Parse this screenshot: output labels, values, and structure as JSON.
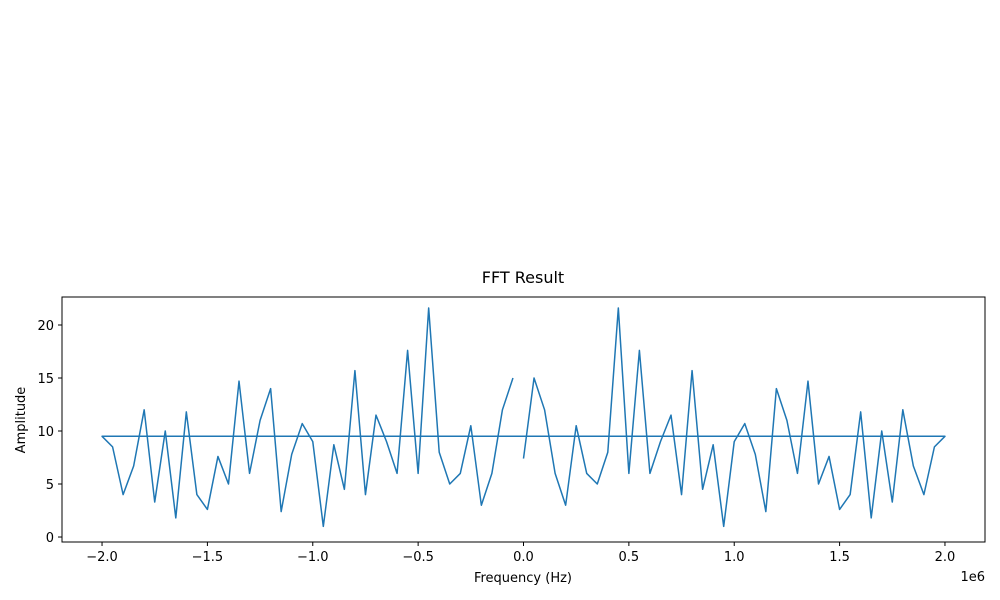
{
  "chart_data": {
    "type": "line",
    "title": "FFT Result",
    "x_label": "Frequency (Hz)",
    "y_label": "Amplitude",
    "x_offset_label": "1e6",
    "x": [
      0,
      50000,
      100000,
      150000,
      200000,
      250000,
      300000,
      350000,
      400000,
      450000,
      500000,
      550000,
      600000,
      650000,
      700000,
      750000,
      800000,
      850000,
      900000,
      950000,
      1000000,
      1050000,
      1100000,
      1150000,
      1200000,
      1250000,
      1300000,
      1350000,
      1400000,
      1450000,
      1500000,
      1550000,
      1600000,
      1650000,
      1700000,
      1750000,
      1800000,
      1850000,
      1900000,
      1950000,
      2000000,
      -2000000,
      -1950000,
      -1900000,
      -1850000,
      -1800000,
      -1750000,
      -1700000,
      -1650000,
      -1600000,
      -1550000,
      -1500000,
      -1450000,
      -1400000,
      -1350000,
      -1300000,
      -1250000,
      -1200000,
      -1150000,
      -1100000,
      -1050000,
      -1000000,
      -950000,
      -900000,
      -850000,
      -800000,
      -750000,
      -700000,
      -650000,
      -600000,
      -550000,
      -500000,
      -450000,
      -400000,
      -350000,
      -300000,
      -250000,
      -200000,
      -150000,
      -100000,
      -50000
    ],
    "series": [
      {
        "name": "FFT",
        "color": "#1f77b4",
        "values": [
          7.4,
          15,
          12,
          6,
          3,
          10.5,
          6,
          5,
          8,
          21.6,
          6,
          17.6,
          6,
          9,
          11.5,
          4,
          15.7,
          4.5,
          8.7,
          1,
          9,
          10.7,
          7.8,
          2.4,
          14,
          11,
          6,
          14.7,
          5,
          7.6,
          2.6,
          4,
          11.8,
          1.8,
          10,
          3.3,
          12,
          6.7,
          4,
          8.5,
          9.5,
          9.5,
          8.5,
          4,
          6.7,
          12,
          3.3,
          10,
          1.8,
          11.8,
          4,
          2.6,
          7.6,
          5,
          14.7,
          6,
          11,
          14,
          2.4,
          7.8,
          10.7,
          9,
          1,
          8.7,
          4.5,
          15.7,
          4,
          11.5,
          9,
          6,
          17.6,
          6,
          21.6,
          8,
          5,
          6,
          10.5,
          3,
          6,
          12,
          15
        ]
      }
    ],
    "xlim": [
      -2190000,
      2190000
    ],
    "ylim": [
      -0.47,
      22.64
    ],
    "xticks": [
      {
        "value": -2000000,
        "label": "−2.0"
      },
      {
        "value": -1500000,
        "label": "−1.5"
      },
      {
        "value": -1000000,
        "label": "−1.0"
      },
      {
        "value": -500000,
        "label": "−0.5"
      },
      {
        "value": 0,
        "label": "0.0"
      },
      {
        "value": 500000,
        "label": "0.5"
      },
      {
        "value": 1000000,
        "label": "1.0"
      },
      {
        "value": 1500000,
        "label": "1.5"
      },
      {
        "value": 2000000,
        "label": "2.0"
      }
    ],
    "yticks": [
      0,
      5,
      10,
      15,
      20
    ],
    "grid": false
  }
}
